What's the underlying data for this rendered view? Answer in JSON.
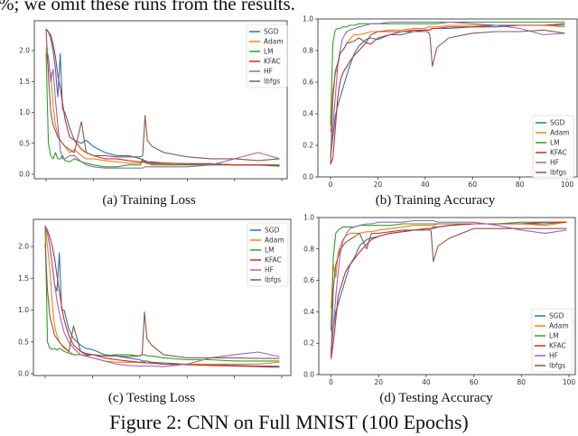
{
  "top_text": "%; we omit these runs from the results.",
  "figure_caption": "Figure 2: CNN on Full MNIST (100 Epochs)",
  "colors": {
    "SGD": "#1f77b4",
    "Adam": "#ff7f0e",
    "LM": "#2ca02c",
    "KFAC": "#d62728",
    "HF": "#9467bd",
    "lbfgs": "#8c564b"
  },
  "chart_data": [
    {
      "id": "a",
      "caption": "(a) Training Loss",
      "type": "line",
      "xlim": [
        0,
        100
      ],
      "xticks": [
        0,
        20,
        40,
        60,
        80,
        100
      ],
      "xtick_labels_shown": false,
      "yticks": [
        "0.0",
        "0.5",
        "1.0",
        "1.5",
        "2.0"
      ],
      "ylim": [
        0,
        2.4
      ],
      "legend": "top-right",
      "grid": false,
      "x": [
        0,
        1,
        2,
        3,
        4,
        5,
        6,
        7,
        8,
        10,
        12,
        15,
        17,
        20,
        25,
        30,
        35,
        40,
        41,
        42,
        43,
        45,
        50,
        60,
        70,
        80,
        90,
        99
      ],
      "series": [
        {
          "name": "SGD",
          "values": [
            2.35,
            2.3,
            2.2,
            2.0,
            1.7,
            1.25,
            1.95,
            1.05,
            1.0,
            0.75,
            0.55,
            0.5,
            0.55,
            0.45,
            0.35,
            0.3,
            0.3,
            0.25,
            0.22,
            0.22,
            0.2,
            0.2,
            0.18,
            0.17,
            0.17,
            0.15,
            0.15,
            0.15
          ]
        },
        {
          "name": "Adam",
          "values": [
            2.0,
            1.7,
            1.65,
            1.1,
            0.8,
            0.65,
            0.55,
            0.5,
            0.45,
            0.35,
            0.4,
            0.3,
            0.25,
            0.25,
            0.22,
            0.2,
            0.18,
            0.18,
            0.2,
            0.18,
            0.17,
            0.17,
            0.16,
            0.15,
            0.15,
            0.15,
            0.15,
            0.15
          ]
        },
        {
          "name": "LM",
          "values": [
            1.95,
            0.5,
            0.3,
            0.25,
            0.35,
            0.25,
            0.25,
            0.3,
            0.22,
            0.2,
            0.25,
            0.2,
            0.18,
            0.15,
            0.12,
            0.12,
            0.15,
            0.15,
            0.25,
            0.2,
            0.18,
            0.15,
            0.15,
            0.15,
            0.15,
            0.15,
            0.15,
            0.15
          ]
        },
        {
          "name": "KFAC",
          "values": [
            2.35,
            2.3,
            2.25,
            2.1,
            1.9,
            1.6,
            1.4,
            1.15,
            0.9,
            0.6,
            0.55,
            0.4,
            0.35,
            0.3,
            0.25,
            0.25,
            0.22,
            0.2,
            0.2,
            0.2,
            0.2,
            0.18,
            0.18,
            0.17,
            0.17,
            0.15,
            0.15,
            0.13
          ]
        },
        {
          "name": "HF",
          "values": [
            2.05,
            1.9,
            1.5,
            1.7,
            1.2,
            0.8,
            0.4,
            0.25,
            0.25,
            0.3,
            0.3,
            0.2,
            0.15,
            0.12,
            0.1,
            0.1,
            0.1,
            0.1,
            0.1,
            0.12,
            0.12,
            0.12,
            0.12,
            0.12,
            0.15,
            0.25,
            0.35,
            0.25
          ]
        },
        {
          "name": "lbfgs",
          "values": [
            2.35,
            1.6,
            1.0,
            0.8,
            0.7,
            0.6,
            0.55,
            0.5,
            0.45,
            0.4,
            0.35,
            0.85,
            0.35,
            0.3,
            0.3,
            0.28,
            0.28,
            0.28,
            0.3,
            0.95,
            0.55,
            0.45,
            0.35,
            0.28,
            0.25,
            0.25,
            0.22,
            0.25
          ]
        }
      ]
    },
    {
      "id": "b",
      "caption": "(b) Training Accuracy",
      "type": "line",
      "xlim": [
        0,
        100
      ],
      "xticks": [
        0,
        20,
        40,
        60,
        80,
        100
      ],
      "xtick_labels_shown": true,
      "yticks": [
        "0.0",
        "0.2",
        "0.4",
        "0.6",
        "0.8",
        "1.0"
      ],
      "ylim": [
        0,
        1
      ],
      "legend": "lower-right",
      "grid": false,
      "x": [
        0,
        1,
        2,
        3,
        4,
        5,
        6,
        7,
        8,
        10,
        12,
        15,
        17,
        20,
        25,
        30,
        35,
        40,
        41,
        42,
        43,
        45,
        50,
        60,
        70,
        80,
        90,
        99
      ],
      "series": [
        {
          "name": "SGD",
          "values": [
            0.13,
            0.25,
            0.38,
            0.45,
            0.5,
            0.55,
            0.6,
            0.65,
            0.7,
            0.78,
            0.83,
            0.87,
            0.88,
            0.87,
            0.9,
            0.9,
            0.92,
            0.93,
            0.93,
            0.93,
            0.94,
            0.94,
            0.94,
            0.95,
            0.95,
            0.96,
            0.96,
            0.96
          ]
        },
        {
          "name": "Adam",
          "values": [
            0.28,
            0.55,
            0.65,
            0.7,
            0.78,
            0.8,
            0.82,
            0.85,
            0.87,
            0.9,
            0.9,
            0.91,
            0.92,
            0.92,
            0.93,
            0.93,
            0.94,
            0.94,
            0.95,
            0.95,
            0.95,
            0.95,
            0.96,
            0.96,
            0.96,
            0.96,
            0.96,
            0.95
          ]
        },
        {
          "name": "LM",
          "values": [
            0.33,
            0.85,
            0.93,
            0.94,
            0.94,
            0.95,
            0.95,
            0.95,
            0.96,
            0.96,
            0.97,
            0.97,
            0.97,
            0.97,
            0.97,
            0.97,
            0.97,
            0.97,
            0.97,
            0.97,
            0.97,
            0.97,
            0.98,
            0.98,
            0.98,
            0.98,
            0.98,
            0.98
          ]
        },
        {
          "name": "KFAC",
          "values": [
            0.08,
            0.12,
            0.3,
            0.5,
            0.6,
            0.65,
            0.68,
            0.7,
            0.73,
            0.77,
            0.8,
            0.85,
            0.84,
            0.88,
            0.9,
            0.92,
            0.93,
            0.93,
            0.93,
            0.93,
            0.94,
            0.94,
            0.95,
            0.95,
            0.96,
            0.96,
            0.96,
            0.97
          ]
        },
        {
          "name": "HF",
          "values": [
            0.12,
            0.3,
            0.5,
            0.7,
            0.8,
            0.87,
            0.9,
            0.92,
            0.93,
            0.94,
            0.95,
            0.96,
            0.97,
            0.97,
            0.98,
            0.98,
            0.98,
            0.98,
            0.98,
            0.98,
            0.98,
            0.98,
            0.98,
            0.97,
            0.96,
            0.94,
            0.9,
            0.91
          ]
        },
        {
          "name": "lbfgs",
          "values": [
            0.08,
            0.5,
            0.67,
            0.72,
            0.78,
            0.8,
            0.82,
            0.85,
            0.85,
            0.86,
            0.88,
            0.85,
            0.9,
            0.92,
            0.92,
            0.92,
            0.92,
            0.92,
            0.92,
            0.9,
            0.7,
            0.82,
            0.88,
            0.91,
            0.92,
            0.92,
            0.93,
            0.91
          ]
        }
      ]
    },
    {
      "id": "c",
      "caption": "(c) Testing Loss",
      "type": "line",
      "xlim": [
        0,
        100
      ],
      "xticks": [
        0,
        20,
        40,
        60,
        80,
        100
      ],
      "xtick_labels_shown": false,
      "yticks": [
        "0.0",
        "0.5",
        "1.0",
        "1.5",
        "2.0"
      ],
      "ylim": [
        0,
        2.4
      ],
      "legend": "top-right",
      "grid": false,
      "x": [
        0,
        1,
        2,
        3,
        4,
        5,
        6,
        7,
        8,
        10,
        12,
        15,
        17,
        20,
        25,
        30,
        35,
        40,
        41,
        42,
        43,
        45,
        50,
        60,
        70,
        80,
        90,
        99
      ],
      "series": [
        {
          "name": "SGD",
          "values": [
            2.32,
            2.2,
            2.0,
            1.7,
            1.4,
            1.3,
            1.9,
            1.0,
            1.0,
            0.7,
            0.55,
            0.45,
            0.4,
            0.38,
            0.3,
            0.28,
            0.25,
            0.22,
            0.2,
            0.2,
            0.2,
            0.18,
            0.17,
            0.15,
            0.14,
            0.13,
            0.12,
            0.12
          ]
        },
        {
          "name": "Adam",
          "values": [
            2.33,
            2.0,
            1.65,
            1.1,
            0.75,
            0.6,
            0.5,
            0.45,
            0.4,
            0.35,
            0.3,
            0.3,
            0.28,
            0.25,
            0.2,
            0.18,
            0.18,
            0.18,
            0.17,
            0.17,
            0.17,
            0.16,
            0.15,
            0.15,
            0.15,
            0.15,
            0.15,
            0.18
          ]
        },
        {
          "name": "LM",
          "values": [
            2.3,
            0.5,
            0.4,
            0.38,
            0.4,
            0.37,
            0.4,
            0.38,
            0.35,
            0.32,
            0.3,
            0.3,
            0.28,
            0.3,
            0.28,
            0.3,
            0.3,
            0.28,
            0.3,
            0.3,
            0.28,
            0.28,
            0.25,
            0.22,
            0.22,
            0.2,
            0.2,
            0.2
          ]
        },
        {
          "name": "KFAC",
          "values": [
            2.32,
            2.25,
            2.15,
            2.0,
            1.8,
            1.55,
            1.3,
            1.05,
            0.85,
            0.6,
            0.45,
            0.35,
            0.32,
            0.3,
            0.25,
            0.22,
            0.2,
            0.18,
            0.18,
            0.18,
            0.17,
            0.17,
            0.15,
            0.14,
            0.13,
            0.12,
            0.11,
            0.1
          ]
        },
        {
          "name": "HF",
          "values": [
            2.3,
            2.2,
            2.0,
            1.7,
            1.4,
            1.15,
            0.95,
            0.8,
            0.65,
            0.5,
            0.4,
            0.3,
            0.28,
            0.25,
            0.2,
            0.15,
            0.13,
            0.12,
            0.12,
            0.12,
            0.12,
            0.12,
            0.11,
            0.15,
            0.25,
            0.3,
            0.34,
            0.27
          ]
        },
        {
          "name": "lbfgs",
          "values": [
            2.05,
            1.3,
            0.9,
            0.75,
            0.6,
            0.55,
            0.5,
            0.45,
            0.42,
            0.35,
            0.75,
            0.35,
            0.3,
            0.3,
            0.28,
            0.28,
            0.27,
            0.28,
            0.3,
            0.97,
            0.55,
            0.45,
            0.3,
            0.25,
            0.25,
            0.25,
            0.24,
            0.24
          ]
        }
      ]
    },
    {
      "id": "d",
      "caption": "(d) Testing Accuracy",
      "type": "line",
      "xlim": [
        0,
        100
      ],
      "xticks": [
        0,
        20,
        40,
        60,
        80,
        100
      ],
      "xtick_labels_shown": true,
      "yticks": [
        "0.0",
        "0.2",
        "0.4",
        "0.6",
        "0.8",
        "1.0"
      ],
      "ylim": [
        0,
        1
      ],
      "legend": "lower-right",
      "grid": false,
      "x": [
        0,
        1,
        2,
        3,
        4,
        5,
        6,
        7,
        8,
        10,
        12,
        15,
        17,
        20,
        25,
        30,
        35,
        40,
        41,
        42,
        43,
        45,
        50,
        60,
        70,
        80,
        90,
        99
      ],
      "series": [
        {
          "name": "SGD",
          "values": [
            0.15,
            0.3,
            0.4,
            0.45,
            0.5,
            0.55,
            0.6,
            0.65,
            0.7,
            0.75,
            0.82,
            0.86,
            0.87,
            0.88,
            0.9,
            0.91,
            0.92,
            0.93,
            0.93,
            0.93,
            0.93,
            0.94,
            0.95,
            0.96,
            0.96,
            0.96,
            0.96,
            0.97
          ]
        },
        {
          "name": "Adam",
          "values": [
            0.42,
            0.7,
            0.62,
            0.78,
            0.82,
            0.86,
            0.88,
            0.89,
            0.9,
            0.9,
            0.9,
            0.91,
            0.91,
            0.92,
            0.93,
            0.94,
            0.95,
            0.95,
            0.95,
            0.95,
            0.95,
            0.96,
            0.96,
            0.96,
            0.96,
            0.96,
            0.95,
            0.97
          ]
        },
        {
          "name": "LM",
          "values": [
            0.28,
            0.75,
            0.9,
            0.92,
            0.93,
            0.94,
            0.94,
            0.94,
            0.94,
            0.94,
            0.95,
            0.95,
            0.95,
            0.95,
            0.95,
            0.96,
            0.96,
            0.96,
            0.96,
            0.96,
            0.96,
            0.96,
            0.96,
            0.96,
            0.96,
            0.97,
            0.97,
            0.97
          ]
        },
        {
          "name": "KFAC",
          "values": [
            0.1,
            0.2,
            0.35,
            0.5,
            0.55,
            0.6,
            0.65,
            0.68,
            0.7,
            0.74,
            0.78,
            0.83,
            0.86,
            0.88,
            0.9,
            0.91,
            0.92,
            0.93,
            0.93,
            0.93,
            0.94,
            0.94,
            0.95,
            0.96,
            0.96,
            0.96,
            0.97,
            0.97
          ]
        },
        {
          "name": "HF",
          "values": [
            0.12,
            0.3,
            0.5,
            0.65,
            0.78,
            0.85,
            0.88,
            0.91,
            0.93,
            0.94,
            0.95,
            0.96,
            0.96,
            0.97,
            0.97,
            0.97,
            0.98,
            0.98,
            0.98,
            0.98,
            0.98,
            0.97,
            0.97,
            0.97,
            0.95,
            0.92,
            0.9,
            0.92
          ]
        },
        {
          "name": "lbfgs",
          "values": [
            0.1,
            0.55,
            0.7,
            0.75,
            0.8,
            0.82,
            0.84,
            0.85,
            0.86,
            0.88,
            0.9,
            0.8,
            0.9,
            0.9,
            0.91,
            0.92,
            0.92,
            0.92,
            0.92,
            0.92,
            0.72,
            0.82,
            0.87,
            0.93,
            0.93,
            0.93,
            0.93,
            0.93
          ]
        }
      ]
    }
  ]
}
